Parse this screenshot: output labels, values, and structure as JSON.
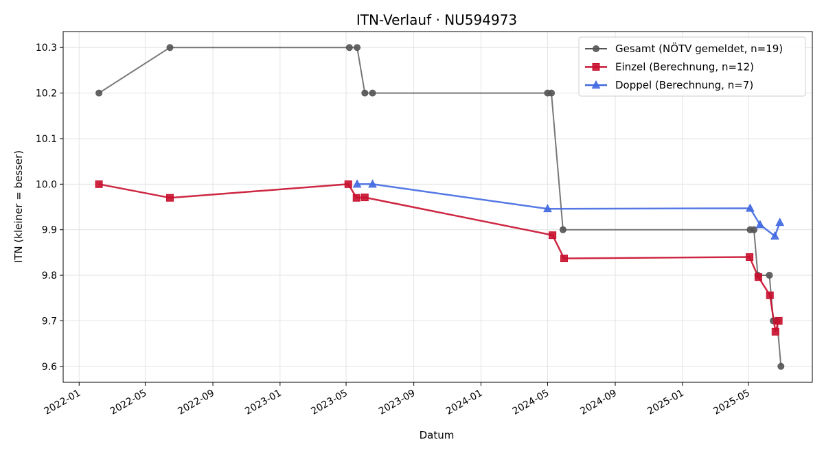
{
  "chart_data": {
    "type": "line",
    "title": "ITN-Verlauf · NU594973",
    "xlabel": "Datum",
    "ylabel": "ITN  (kleiner = besser)",
    "xlim": [
      "2021-12-03",
      "2025-08-25"
    ],
    "ylim": [
      9.565,
      10.335
    ],
    "x_ticks": [
      "2022-01-01",
      "2022-05-01",
      "2022-09-01",
      "2023-01-01",
      "2023-05-01",
      "2023-09-01",
      "2024-01-01",
      "2024-05-01",
      "2024-09-01",
      "2025-01-01",
      "2025-05-01"
    ],
    "x_tick_labels": [
      "2022-01",
      "2022-05",
      "2022-09",
      "2023-01",
      "2023-05",
      "2023-09",
      "2024-01",
      "2024-05",
      "2024-09",
      "2025-01",
      "2025-05"
    ],
    "y_ticks": [
      9.6,
      9.7,
      9.8,
      9.9,
      10.0,
      10.1,
      10.2,
      10.3
    ],
    "y_tick_labels": [
      "9.6",
      "9.7",
      "9.8",
      "9.9",
      "10.0",
      "10.1",
      "10.2",
      "10.3"
    ],
    "grid": true,
    "legend_position": "top-right",
    "series": [
      {
        "name": "Gesamt (NÖTV gemeldet, n=19)",
        "color": "#555555",
        "marker": "circle",
        "x": [
          "2022-02-06",
          "2022-06-15",
          "2023-05-07",
          "2023-05-21",
          "2023-06-04",
          "2023-06-18",
          "2024-05-01",
          "2024-05-08",
          "2024-05-29",
          "2025-05-04",
          "2025-05-11",
          "2025-05-18",
          "2025-06-08",
          "2025-06-15",
          "2025-06-22",
          "2025-06-29"
        ],
        "y": [
          10.2,
          10.3,
          10.3,
          10.3,
          10.2,
          10.2,
          10.2,
          10.2,
          9.9,
          9.9,
          9.9,
          9.8,
          9.8,
          9.7,
          9.7,
          9.6
        ]
      },
      {
        "name": "Einzel (Berechnung, n=12)",
        "color": "#c8102e",
        "marker": "square",
        "x": [
          "2022-02-06",
          "2022-06-15",
          "2023-05-05",
          "2023-05-20",
          "2023-06-04",
          "2024-05-10",
          "2024-05-31",
          "2025-05-03",
          "2025-05-19",
          "2025-06-09",
          "2025-06-19",
          "2025-06-25"
        ],
        "y": [
          10.0,
          9.97,
          10.0,
          9.97,
          9.971,
          9.888,
          9.837,
          9.84,
          9.796,
          9.756,
          9.676,
          9.7
        ]
      },
      {
        "name": "Doppel (Berechnung, n=7)",
        "color": "#4169e1",
        "marker": "triangle",
        "x": [
          "2023-05-21",
          "2023-06-18",
          "2024-05-01",
          "2025-05-04",
          "2025-05-22",
          "2025-06-18",
          "2025-06-27"
        ],
        "y": [
          10.0,
          10.0,
          9.946,
          9.947,
          9.911,
          9.886,
          9.916
        ]
      }
    ]
  }
}
